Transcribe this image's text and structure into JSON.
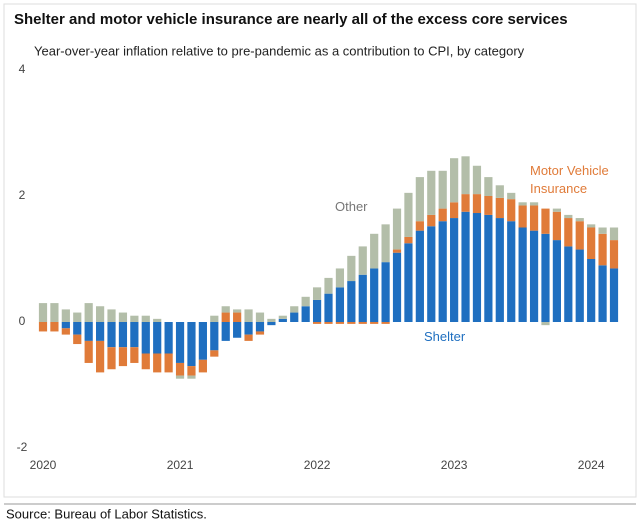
{
  "chart_data": {
    "type": "stacked_bar",
    "title": "Shelter and motor vehicle insurance are nearly all of the excess core services",
    "subtitle": "Year-over-year inflation relative to pre-pandemic as a contribution to CPI, by category",
    "source": "Source: Bureau of Labor Statistics.",
    "categories": [
      "2020",
      null,
      null,
      null,
      null,
      null,
      null,
      null,
      null,
      null,
      null,
      null,
      "2021",
      null,
      null,
      null,
      null,
      null,
      null,
      null,
      null,
      null,
      null,
      null,
      "2022",
      null,
      null,
      null,
      null,
      null,
      null,
      null,
      null,
      null,
      null,
      null,
      "2023",
      null,
      null,
      null,
      null,
      null,
      null,
      null,
      null,
      null,
      null,
      null,
      "2024",
      null,
      null
    ],
    "series": [
      {
        "name": "Shelter",
        "color": "#1f6fc0",
        "values": [
          0,
          0,
          -0.1,
          -0.2,
          -0.3,
          -0.3,
          -0.4,
          -0.4,
          -0.4,
          -0.5,
          -0.5,
          -0.5,
          -0.65,
          -0.7,
          -0.6,
          -0.45,
          -0.3,
          -0.25,
          -0.2,
          -0.15,
          -0.05,
          0.05,
          0.15,
          0.25,
          0.35,
          0.45,
          0.55,
          0.65,
          0.75,
          0.85,
          0.95,
          1.1,
          1.25,
          1.45,
          1.52,
          1.6,
          1.65,
          1.75,
          1.73,
          1.7,
          1.65,
          1.6,
          1.5,
          1.45,
          1.4,
          1.3,
          1.2,
          1.15,
          1.0,
          0.9,
          0.85
        ]
      },
      {
        "name": "Motor Vehicle Insurance",
        "color": "#e07b39",
        "values": [
          -0.15,
          -0.15,
          -0.1,
          -0.15,
          -0.35,
          -0.5,
          -0.35,
          -0.3,
          -0.25,
          -0.25,
          -0.3,
          -0.3,
          -0.2,
          -0.15,
          -0.2,
          -0.1,
          0.15,
          0.15,
          -0.1,
          -0.05,
          0,
          0,
          0,
          0,
          -0.03,
          -0.03,
          -0.03,
          -0.03,
          -0.03,
          -0.03,
          -0.03,
          0.05,
          0.1,
          0.15,
          0.18,
          0.2,
          0.25,
          0.28,
          0.3,
          0.3,
          0.32,
          0.35,
          0.35,
          0.4,
          0.4,
          0.45,
          0.45,
          0.45,
          0.5,
          0.5,
          0.45
        ]
      },
      {
        "name": "Other",
        "color": "#b3bea9",
        "values": [
          0.3,
          0.3,
          0.2,
          0.15,
          0.3,
          0.25,
          0.2,
          0.15,
          0.1,
          0.1,
          0.05,
          0,
          -0.05,
          -0.05,
          0,
          0.1,
          0.1,
          0.05,
          0.2,
          0.15,
          0.05,
          0.05,
          0.1,
          0.15,
          0.2,
          0.25,
          0.3,
          0.4,
          0.45,
          0.55,
          0.6,
          0.65,
          0.7,
          0.7,
          0.7,
          0.6,
          0.7,
          0.6,
          0.45,
          0.3,
          0.2,
          0.1,
          0.05,
          0.05,
          -0.05,
          0.05,
          0.05,
          0.05,
          0.05,
          0.1,
          0.2
        ]
      }
    ],
    "annotations": [
      {
        "text": "Other",
        "series": 2
      },
      {
        "text": "Motor Vehicle Insurance",
        "series": 1
      },
      {
        "text": "Shelter",
        "series": 0
      }
    ],
    "ylim": [
      -2,
      4
    ],
    "yticks": [
      -2,
      0,
      2,
      4
    ],
    "grid": false
  }
}
